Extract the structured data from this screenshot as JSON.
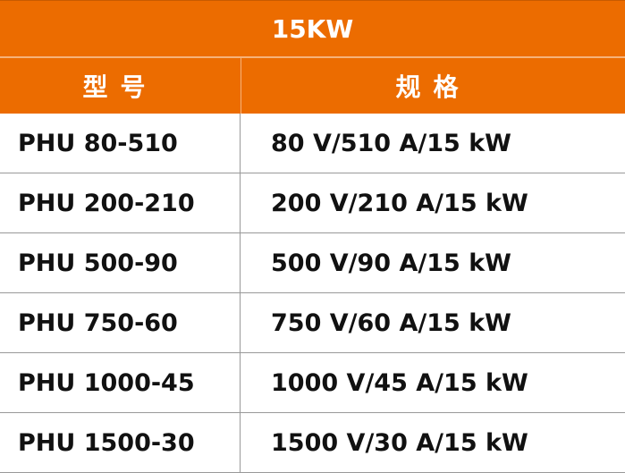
{
  "title": "15KW",
  "headers": {
    "model": "型号",
    "spec": "规格"
  },
  "colors": {
    "header_bg": "#ec6c00"
  },
  "rows": [
    {
      "model": "PHU 80-510",
      "spec": "80 V/510 A/15 kW"
    },
    {
      "model": "PHU 200-210",
      "spec": "200 V/210 A/15 kW"
    },
    {
      "model": "PHU 500-90",
      "spec": "500 V/90 A/15 kW"
    },
    {
      "model": "PHU 750-60",
      "spec": "750 V/60 A/15 kW"
    },
    {
      "model": "PHU 1000-45",
      "spec": "1000 V/45 A/15 kW"
    },
    {
      "model": "PHU 1500-30",
      "spec": "1500 V/30 A/15 kW"
    }
  ]
}
